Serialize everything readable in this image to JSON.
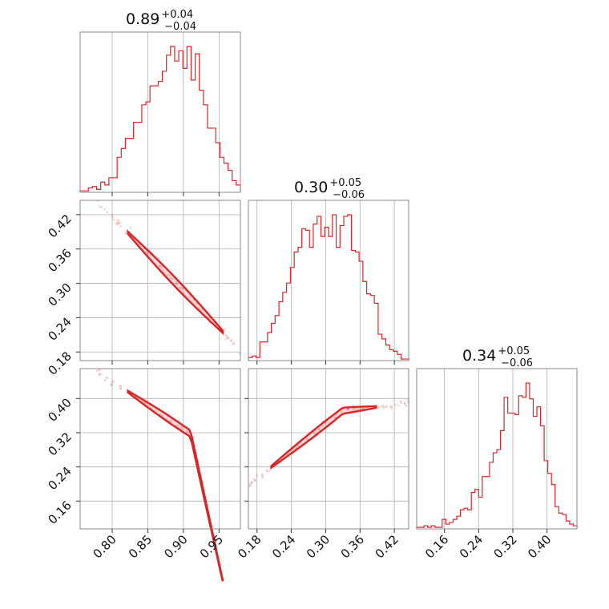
{
  "chart_data": {
    "type": "corner",
    "color": "#d62728",
    "titles": [
      {
        "value": "0.89",
        "plus": "+0.04",
        "minus": "−0.04"
      },
      {
        "value": "0.30",
        "plus": "+0.05",
        "minus": "−0.06"
      },
      {
        "value": "0.34",
        "plus": "+0.05",
        "minus": "−0.06"
      }
    ],
    "params": [
      {
        "range": [
          0.755,
          0.98
        ],
        "ticks": [
          0.8,
          0.85,
          0.9,
          0.95
        ],
        "tick_labels": [
          "0.80",
          "0.85",
          "0.90",
          "0.95"
        ]
      },
      {
        "range": [
          0.165,
          0.445
        ],
        "ticks": [
          0.18,
          0.24,
          0.3,
          0.36,
          0.42
        ],
        "tick_labels": [
          "0.18",
          "0.24",
          "0.30",
          "0.36",
          "0.42"
        ]
      },
      {
        "range": [
          0.095,
          0.47
        ],
        "ticks": [
          0.16,
          0.24,
          0.32,
          0.4
        ],
        "tick_labels": [
          "0.16",
          "0.24",
          "0.32",
          "0.40"
        ]
      }
    ],
    "histograms": [
      [
        1,
        1,
        3,
        4,
        2,
        7,
        5,
        10,
        10,
        24,
        30,
        37,
        37,
        48,
        48,
        60,
        62,
        73,
        73,
        76,
        83,
        94,
        100,
        90,
        97,
        85,
        100,
        77,
        95,
        70,
        60,
        44,
        44,
        34,
        24,
        20,
        15,
        8,
        5
      ],
      [
        2,
        3,
        2,
        12,
        12,
        18,
        24,
        29,
        38,
        44,
        50,
        60,
        70,
        73,
        85,
        84,
        73,
        88,
        93,
        80,
        86,
        80,
        94,
        73,
        87,
        93,
        94,
        71,
        70,
        64,
        51,
        43,
        42,
        37,
        17,
        14,
        10,
        7,
        6,
        4,
        1,
        1
      ],
      [
        1,
        1,
        2,
        1,
        2,
        1,
        1,
        6,
        3,
        4,
        6,
        8,
        12,
        13,
        12,
        23,
        25,
        20,
        33,
        33,
        42,
        48,
        50,
        62,
        83,
        73,
        73,
        72,
        84,
        83,
        92,
        82,
        71,
        77,
        65,
        43,
        35,
        28,
        14,
        10,
        9,
        5,
        3,
        2
      ]
    ],
    "grid": true
  }
}
